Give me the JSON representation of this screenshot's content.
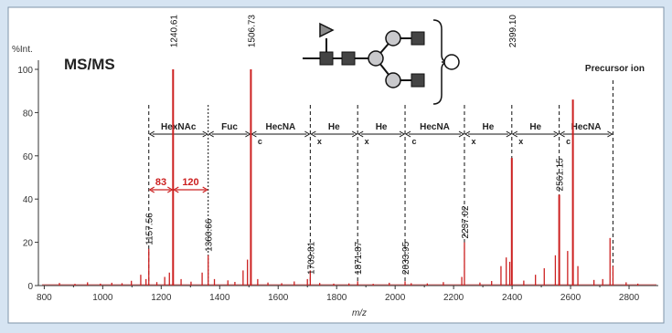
{
  "chart_data": {
    "type": "mass-spectrum",
    "title": "MS/MS",
    "xlabel": "m/z",
    "ylabel": "%Int.",
    "xlim": [
      780,
      2900
    ],
    "ylim": [
      0,
      100
    ],
    "x_ticks": [
      800,
      1000,
      1200,
      1400,
      1600,
      1800,
      2000,
      2200,
      2400,
      2600,
      2800
    ],
    "y_ticks": [
      0,
      20,
      40,
      60,
      80,
      100
    ],
    "labeled_peaks": [
      {
        "mz": 1157.56,
        "label": "1157.56",
        "intensity": 17
      },
      {
        "mz": 1240.61,
        "label": "1240.61",
        "intensity": 100
      },
      {
        "mz": 1360.66,
        "label": "1360.66",
        "intensity": 14
      },
      {
        "mz": 1506.73,
        "label": "1506.73",
        "intensity": 100
      },
      {
        "mz": 1709.81,
        "label": "1709.81",
        "intensity": 7
      },
      {
        "mz": 1871.87,
        "label": "1871.87",
        "intensity": 2
      },
      {
        "mz": 2033.95,
        "label": "2033.95",
        "intensity": 2
      },
      {
        "mz": 2237.02,
        "label": "2237.02",
        "intensity": 20
      },
      {
        "mz": 2399.1,
        "label": "2399.10",
        "intensity": 59
      },
      {
        "mz": 2561.15,
        "label": "2561.15",
        "intensity": 42
      }
    ],
    "unlabeled_peaks": [
      {
        "mz": 1130,
        "intensity": 5
      },
      {
        "mz": 1148,
        "intensity": 3
      },
      {
        "mz": 1212,
        "intensity": 4
      },
      {
        "mz": 1228,
        "intensity": 6
      },
      {
        "mz": 1268,
        "intensity": 3
      },
      {
        "mz": 1340,
        "intensity": 6
      },
      {
        "mz": 1382,
        "intensity": 3
      },
      {
        "mz": 1480,
        "intensity": 7
      },
      {
        "mz": 1495,
        "intensity": 12
      },
      {
        "mz": 1530,
        "intensity": 3
      },
      {
        "mz": 1700,
        "intensity": 3
      },
      {
        "mz": 2228,
        "intensity": 4
      },
      {
        "mz": 2362,
        "intensity": 9
      },
      {
        "mz": 2380,
        "intensity": 13
      },
      {
        "mz": 2392,
        "intensity": 11
      },
      {
        "mz": 2480,
        "intensity": 5
      },
      {
        "mz": 2510,
        "intensity": 8
      },
      {
        "mz": 2548,
        "intensity": 14
      },
      {
        "mz": 2590,
        "intensity": 16
      },
      {
        "mz": 2608,
        "intensity": 86
      },
      {
        "mz": 2625,
        "intensity": 9
      },
      {
        "mz": 2735,
        "intensity": 22
      },
      {
        "mz": 2745,
        "intensity": 9
      }
    ],
    "noise_peaks": [
      {
        "mz": 852,
        "intensity": 1.2
      },
      {
        "mz": 905,
        "intensity": 0.8
      },
      {
        "mz": 948,
        "intensity": 1.5
      },
      {
        "mz": 992,
        "intensity": 0.9
      },
      {
        "mz": 1031,
        "intensity": 1.3
      },
      {
        "mz": 1066,
        "intensity": 1.1
      },
      {
        "mz": 1098,
        "intensity": 2.2
      },
      {
        "mz": 1185,
        "intensity": 1.6
      },
      {
        "mz": 1302,
        "intensity": 1.8
      },
      {
        "mz": 1428,
        "intensity": 2.4
      },
      {
        "mz": 1452,
        "intensity": 1.7
      },
      {
        "mz": 1565,
        "intensity": 1.4
      },
      {
        "mz": 1612,
        "intensity": 1.1
      },
      {
        "mz": 1655,
        "intensity": 1.9
      },
      {
        "mz": 1742,
        "intensity": 1.2
      },
      {
        "mz": 1790,
        "intensity": 0.9
      },
      {
        "mz": 1842,
        "intensity": 1.0
      },
      {
        "mz": 1925,
        "intensity": 0.8
      },
      {
        "mz": 1980,
        "intensity": 1.3
      },
      {
        "mz": 2055,
        "intensity": 1.1
      },
      {
        "mz": 2110,
        "intensity": 1.0
      },
      {
        "mz": 2165,
        "intensity": 1.6
      },
      {
        "mz": 2290,
        "intensity": 1.4
      },
      {
        "mz": 2330,
        "intensity": 2.1
      },
      {
        "mz": 2440,
        "intensity": 2.3
      },
      {
        "mz": 2680,
        "intensity": 2.6
      },
      {
        "mz": 2710,
        "intensity": 3.0
      },
      {
        "mz": 2790,
        "intensity": 1.5
      },
      {
        "mz": 2830,
        "intensity": 0.9
      }
    ],
    "fragment_ladder": {
      "markers_mz": [
        1157.56,
        1360.66,
        1506.73,
        1709.81,
        1871.87,
        2033.95,
        2237.02,
        2399.1,
        2561.15,
        2745
      ],
      "segments": [
        {
          "label": "HexNAc",
          "sub": ""
        },
        {
          "label": "Fuc",
          "sub": ""
        },
        {
          "label": "HecNA",
          "sub": "c"
        },
        {
          "label": "He",
          "sub": "x"
        },
        {
          "label": "He",
          "sub": "x"
        },
        {
          "label": "HecNA",
          "sub": "c"
        },
        {
          "label": "He",
          "sub": "x"
        },
        {
          "label": "He",
          "sub": "x"
        },
        {
          "label": "HecNA",
          "sub": "c"
        }
      ]
    },
    "mass_differences": [
      {
        "label": "83",
        "from_mz": 1157.56,
        "to_mz": 1240.61
      },
      {
        "label": "120",
        "from_mz": 1240.61,
        "to_mz": 1360.66
      }
    ],
    "precursor_label": "Precursor ion",
    "precursor_mz": 2745,
    "colors": {
      "spectrum": "#cc2020",
      "marker": "#111111",
      "annotation": "#cc2020",
      "frame_bg": "#d6e4f2"
    }
  }
}
